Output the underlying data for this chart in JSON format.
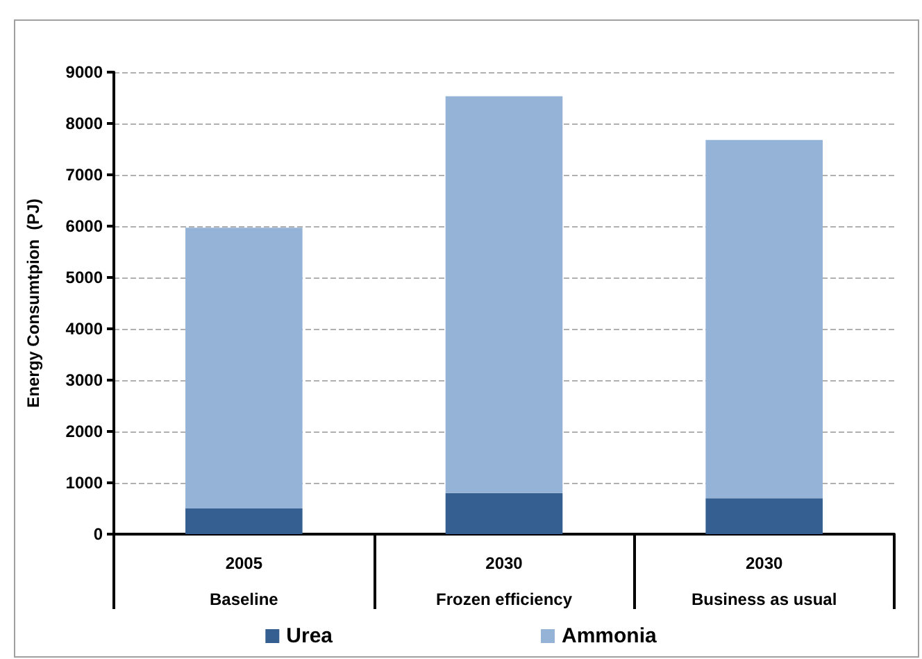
{
  "chart_data": {
    "type": "bar",
    "stacked": true,
    "ylabel": "Energy Consumtpion  (PJ)",
    "categories": [
      "2005\nBaseline",
      "2030\nFrozen efficiency",
      "2030\nBusiness as usual"
    ],
    "series": [
      {
        "name": "Urea",
        "color": "#355f91",
        "values": [
          500,
          800,
          700
        ]
      },
      {
        "name": "Ammonia",
        "color": "#95b3d7",
        "values": [
          5470,
          7730,
          6980
        ]
      }
    ],
    "ylim": [
      0,
      9000
    ],
    "yticks": [
      0,
      1000,
      2000,
      3000,
      4000,
      5000,
      6000,
      7000,
      8000,
      9000
    ],
    "grid": "y",
    "legend": "bottom"
  }
}
